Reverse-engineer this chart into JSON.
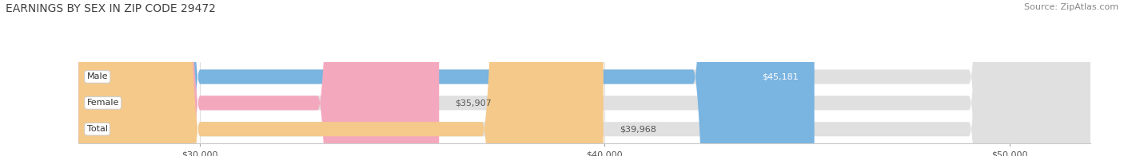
{
  "title": "EARNINGS BY SEX IN ZIP CODE 29472",
  "source_text": "Source: ZipAtlas.com",
  "categories": [
    "Male",
    "Female",
    "Total"
  ],
  "values": [
    45181,
    35907,
    39968
  ],
  "bar_colors": [
    "#7ab4e0",
    "#f4a8be",
    "#f5c98a"
  ],
  "value_labels": [
    "$45,181",
    "$35,907",
    "$39,968"
  ],
  "bar_bg_color": "#e0e0e0",
  "xmin": 27000,
  "xmax": 52000,
  "xticks": [
    30000,
    40000,
    50000
  ],
  "xtick_labels": [
    "$30,000",
    "$40,000",
    "$50,000"
  ],
  "title_fontsize": 10,
  "source_fontsize": 8,
  "tick_fontsize": 8,
  "bar_label_fontsize": 8,
  "value_fontsize": 8,
  "bar_height": 0.55,
  "background_color": "#ffffff"
}
